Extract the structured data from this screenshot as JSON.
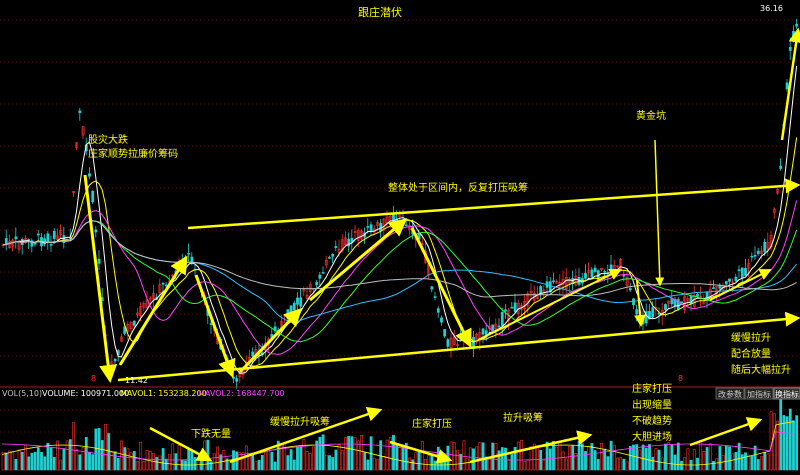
{
  "chart_data": {
    "type": "candlestick",
    "title": "跟庄潜伏",
    "price_high_label": "36.16",
    "price_low_label": "11.42",
    "volume_header": {
      "name": "VOL(5,10)",
      "volume": "VOLUME: 100971.000",
      "mavol1": "MAVOL1: 153238.200",
      "mavol2": "MAVOL2: 168447.700"
    },
    "buttons": [
      "改参数",
      "加指标",
      "换指标"
    ],
    "annotations": [
      {
        "id": "crash",
        "lines": [
          "股灾大跌",
          "庄家顺势拉廉价筹码"
        ]
      },
      {
        "id": "range",
        "lines": [
          "整体处于区间内，反复打压吸筹"
        ]
      },
      {
        "id": "golden-pit",
        "lines": [
          "黄金坑"
        ]
      },
      {
        "id": "slow-rise",
        "lines": [
          "缓慢拉升",
          "配合放量",
          "随后大幅拉升"
        ]
      },
      {
        "id": "vol-drop",
        "lines": [
          "下跌无量"
        ]
      },
      {
        "id": "vol-slow-rise",
        "lines": [
          "缓慢拉升吸筹"
        ]
      },
      {
        "id": "vol-suppress",
        "lines": [
          "庄家打压"
        ]
      },
      {
        "id": "vol-rise",
        "lines": [
          "拉升吸筹"
        ]
      },
      {
        "id": "vol-shrink",
        "lines": [
          "庄家打压",
          "出现缩量",
          "不破趋势",
          "大胆进场"
        ]
      }
    ],
    "marker_label": "8",
    "colors": {
      "up": "#ff3030",
      "down": "#20d0d0",
      "arrow": "#ffff00",
      "text": "#ffff00"
    }
  }
}
